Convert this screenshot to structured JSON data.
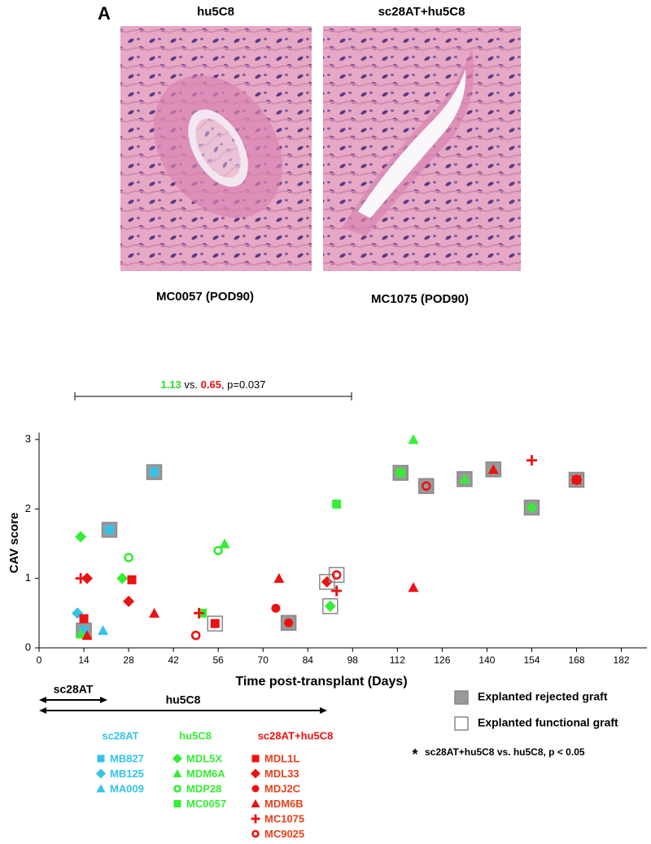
{
  "panel": {
    "label": "A",
    "images": [
      {
        "title": "hu5C8",
        "caption": "MC0057 (POD90)"
      },
      {
        "title": "sc28AT+hu5C8",
        "caption": "MC1075 (POD90)"
      }
    ]
  },
  "chart_data": {
    "type": "scatter",
    "x_label": "Time post-transplant (Days)",
    "y_label": "CAV score",
    "xlim": [
      0,
      190
    ],
    "ylim": [
      0,
      3.1
    ],
    "xticks": [
      0,
      14,
      28,
      42,
      56,
      70,
      84,
      98,
      112,
      126,
      140,
      154,
      168,
      182
    ],
    "yticks": [
      0,
      1,
      2,
      3
    ],
    "annotation": [
      {
        "text": "1.13",
        "color": "#22dd22"
      },
      {
        "text": " vs. "
      },
      {
        "text": "0.65",
        "color": "#ee1111"
      },
      {
        "text": ", p=0.037"
      }
    ],
    "treatments": [
      "sc28AT",
      "hu5C8"
    ],
    "graft_legend": [
      {
        "label": "Explanted rejected graft",
        "fill": "#999999"
      },
      {
        "label": "Explanted functional graft",
        "fill": "none"
      }
    ],
    "footnote": "sc28AT+hu5C8 vs.  hu5C8, p < 0.05",
    "footnote_mark": "*",
    "groups": [
      {
        "name": "sc28AT",
        "color": "#33c3ea",
        "series": [
          {
            "name": "MB827",
            "marker": "square",
            "x": [
              14,
              22,
              36
            ],
            "values": [
              0.25,
              1.7,
              2.53
            ],
            "graft": [
              0,
              0,
              0
            ]
          },
          {
            "name": "MB125",
            "marker": "diamond",
            "x": [
              12,
              12
            ],
            "values": [
              0.5,
              0.5
            ],
            "graft": [
              null,
              null
            ]
          },
          {
            "name": "MA009",
            "marker": "triangle",
            "x": [
              20
            ],
            "values": [
              0.25
            ],
            "graft": [
              null
            ]
          }
        ]
      },
      {
        "name": "hu5C8",
        "color": "#33ee33",
        "series": [
          {
            "name": "MDL5X",
            "marker": "diamond",
            "x": [
              13,
              26,
              91,
              154
            ],
            "values": [
              1.6,
              1.0,
              0.6,
              2.02
            ],
            "graft": [
              null,
              null,
              1,
              0
            ]
          },
          {
            "name": "MDM6A",
            "marker": "triangle",
            "x": [
              13,
              58,
              117,
              133
            ],
            "values": [
              0.2,
              1.5,
              3.0,
              2.43
            ],
            "graft": [
              null,
              null,
              null,
              0
            ]
          },
          {
            "name": "MDP28",
            "marker": "open-circle",
            "x": [
              28,
              56
            ],
            "values": [
              1.3,
              1.4
            ],
            "graft": [
              null,
              null
            ]
          },
          {
            "name": "MC0057",
            "marker": "square",
            "x": [
              51,
              93,
              113
            ],
            "values": [
              0.5,
              2.07,
              2.52
            ],
            "graft": [
              null,
              null,
              0
            ]
          }
        ]
      },
      {
        "name": "sc28AT+hu5C8",
        "color": "#ee1111",
        "series": [
          {
            "name": "MDL1L",
            "marker": "square",
            "x": [
              14,
              29,
              55,
              168
            ],
            "values": [
              0.42,
              0.98,
              0.35,
              2.42
            ],
            "graft": [
              null,
              null,
              1,
              0
            ]
          },
          {
            "name": "MDL33",
            "marker": "diamond",
            "x": [
              15,
              28,
              90
            ],
            "values": [
              1.0,
              0.67,
              0.95
            ],
            "graft": [
              null,
              null,
              1
            ]
          },
          {
            "name": "MDJ2C",
            "marker": "circle",
            "x": [
              74,
              78
            ],
            "values": [
              0.57,
              0.36
            ],
            "graft": [
              null,
              0
            ]
          },
          {
            "name": "MDM6B",
            "marker": "triangle",
            "x": [
              15,
              36,
              75,
              117,
              142
            ],
            "values": [
              0.18,
              0.5,
              1.0,
              0.87,
              2.57
            ],
            "graft": [
              null,
              null,
              null,
              null,
              0
            ]
          },
          {
            "name": "MC1075",
            "marker": "plus",
            "x": [
              13,
              50,
              93,
              154,
              168
            ],
            "values": [
              1.0,
              0.5,
              0.82,
              2.7,
              2.42
            ],
            "graft": [
              null,
              null,
              null,
              null,
              null
            ]
          },
          {
            "name": "MC9025",
            "marker": "open-circle",
            "x": [
              49,
              93,
              121
            ],
            "values": [
              0.18,
              1.05,
              2.33
            ],
            "graft": [
              null,
              1,
              0
            ]
          }
        ]
      }
    ]
  }
}
